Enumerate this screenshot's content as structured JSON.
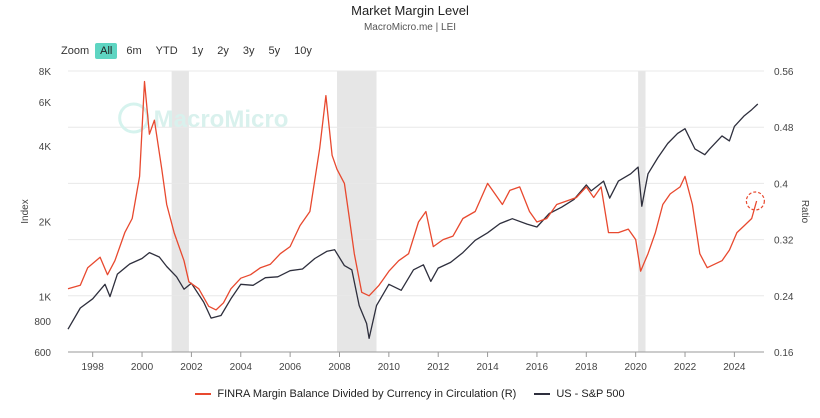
{
  "header": {
    "title": "Market Margin Level",
    "subtitle": "MacroMicro.me | LEI"
  },
  "zoom": {
    "label": "Zoom",
    "buttons": [
      "All",
      "6m",
      "YTD",
      "1y",
      "2y",
      "3y",
      "5y",
      "10y"
    ],
    "active": "All"
  },
  "watermark": "MacroMicro",
  "colors": {
    "margin": "#e8492f",
    "sp500": "#2e2f3d",
    "recession": "#e6e6e6",
    "active_zoom": "#5ed5c2"
  },
  "chart_data": {
    "type": "line",
    "title": "Market Margin Level",
    "subtitle": "MacroMicro.me | LEI",
    "x_axis": {
      "range": [
        1997.0,
        2025.2
      ],
      "ticks": [
        "1998",
        "2000",
        "2002",
        "2004",
        "2006",
        "2008",
        "2010",
        "2012",
        "2014",
        "2016",
        "2018",
        "2020",
        "2022",
        "2024"
      ]
    },
    "y_left": {
      "label": "Index",
      "scale": "log",
      "range": [
        600,
        8000
      ],
      "ticks": [
        {
          "v": 600,
          "label": "600"
        },
        {
          "v": 800,
          "label": "800"
        },
        {
          "v": 1000,
          "label": "1K"
        },
        {
          "v": 2000,
          "label": "2K"
        },
        {
          "v": 4000,
          "label": "4K"
        },
        {
          "v": 6000,
          "label": "6K"
        },
        {
          "v": 8000,
          "label": "8K"
        }
      ]
    },
    "y_right": {
      "label": "Ratio",
      "scale": "linear",
      "range": [
        0.16,
        0.56
      ],
      "ticks": [
        "0.16",
        "0.24",
        "0.32",
        "0.4",
        "0.48",
        "0.56"
      ]
    },
    "grid": "horizontal",
    "legend_position": "bottom",
    "recessions": [
      [
        2001.2,
        2001.9
      ],
      [
        2007.9,
        2009.5
      ],
      [
        2020.1,
        2020.4
      ]
    ],
    "series": [
      {
        "name": "FINRA Margin Balance Divided by Currency in Circulation (R)",
        "axis": "right",
        "points": [
          [
            1997.0,
            0.25
          ],
          [
            1997.5,
            0.255
          ],
          [
            1997.8,
            0.28
          ],
          [
            1998.3,
            0.295
          ],
          [
            1998.6,
            0.27
          ],
          [
            1998.9,
            0.29
          ],
          [
            1999.3,
            0.33
          ],
          [
            1999.6,
            0.35
          ],
          [
            1999.9,
            0.41
          ],
          [
            2000.1,
            0.545
          ],
          [
            2000.3,
            0.47
          ],
          [
            2000.5,
            0.49
          ],
          [
            2000.8,
            0.42
          ],
          [
            2001.0,
            0.37
          ],
          [
            2001.3,
            0.33
          ],
          [
            2001.7,
            0.29
          ],
          [
            2001.9,
            0.26
          ],
          [
            2002.3,
            0.25
          ],
          [
            2002.7,
            0.225
          ],
          [
            2003.0,
            0.22
          ],
          [
            2003.3,
            0.23
          ],
          [
            2003.6,
            0.25
          ],
          [
            2004.0,
            0.265
          ],
          [
            2004.4,
            0.27
          ],
          [
            2004.8,
            0.28
          ],
          [
            2005.2,
            0.285
          ],
          [
            2005.6,
            0.3
          ],
          [
            2006.0,
            0.31
          ],
          [
            2006.4,
            0.34
          ],
          [
            2006.8,
            0.36
          ],
          [
            2007.2,
            0.45
          ],
          [
            2007.45,
            0.525
          ],
          [
            2007.7,
            0.44
          ],
          [
            2007.9,
            0.42
          ],
          [
            2008.2,
            0.4
          ],
          [
            2008.4,
            0.35
          ],
          [
            2008.6,
            0.3
          ],
          [
            2008.9,
            0.245
          ],
          [
            2009.2,
            0.24
          ],
          [
            2009.6,
            0.255
          ],
          [
            2010.0,
            0.275
          ],
          [
            2010.4,
            0.29
          ],
          [
            2010.8,
            0.3
          ],
          [
            2011.2,
            0.345
          ],
          [
            2011.5,
            0.36
          ],
          [
            2011.8,
            0.31
          ],
          [
            2012.2,
            0.32
          ],
          [
            2012.6,
            0.325
          ],
          [
            2013.0,
            0.35
          ],
          [
            2013.5,
            0.36
          ],
          [
            2014.0,
            0.4
          ],
          [
            2014.3,
            0.385
          ],
          [
            2014.6,
            0.37
          ],
          [
            2014.9,
            0.39
          ],
          [
            2015.3,
            0.395
          ],
          [
            2015.7,
            0.36
          ],
          [
            2016.0,
            0.345
          ],
          [
            2016.4,
            0.35
          ],
          [
            2016.8,
            0.37
          ],
          [
            2017.2,
            0.375
          ],
          [
            2017.6,
            0.38
          ],
          [
            2018.0,
            0.395
          ],
          [
            2018.3,
            0.38
          ],
          [
            2018.6,
            0.395
          ],
          [
            2018.9,
            0.33
          ],
          [
            2019.3,
            0.33
          ],
          [
            2019.7,
            0.335
          ],
          [
            2020.0,
            0.32
          ],
          [
            2020.2,
            0.275
          ],
          [
            2020.5,
            0.3
          ],
          [
            2020.8,
            0.33
          ],
          [
            2021.1,
            0.37
          ],
          [
            2021.4,
            0.385
          ],
          [
            2021.8,
            0.395
          ],
          [
            2022.0,
            0.41
          ],
          [
            2022.3,
            0.37
          ],
          [
            2022.6,
            0.3
          ],
          [
            2022.9,
            0.28
          ],
          [
            2023.2,
            0.285
          ],
          [
            2023.5,
            0.29
          ],
          [
            2023.8,
            0.305
          ],
          [
            2024.1,
            0.33
          ],
          [
            2024.4,
            0.34
          ],
          [
            2024.7,
            0.35
          ],
          [
            2024.9,
            0.375
          ]
        ]
      },
      {
        "name": "US - S&P 500",
        "axis": "left",
        "points": [
          [
            1997.0,
            740
          ],
          [
            1997.5,
            900
          ],
          [
            1998.0,
            980
          ],
          [
            1998.5,
            1120
          ],
          [
            1998.7,
            1000
          ],
          [
            1999.0,
            1230
          ],
          [
            1999.5,
            1350
          ],
          [
            2000.0,
            1420
          ],
          [
            2000.3,
            1500
          ],
          [
            2000.7,
            1440
          ],
          [
            2001.0,
            1320
          ],
          [
            2001.4,
            1200
          ],
          [
            2001.7,
            1070
          ],
          [
            2002.0,
            1130
          ],
          [
            2002.5,
            950
          ],
          [
            2002.8,
            820
          ],
          [
            2003.2,
            840
          ],
          [
            2003.6,
            980
          ],
          [
            2004.0,
            1120
          ],
          [
            2004.5,
            1110
          ],
          [
            2005.0,
            1190
          ],
          [
            2005.5,
            1200
          ],
          [
            2006.0,
            1270
          ],
          [
            2006.5,
            1290
          ],
          [
            2007.0,
            1420
          ],
          [
            2007.5,
            1520
          ],
          [
            2007.8,
            1540
          ],
          [
            2008.2,
            1330
          ],
          [
            2008.5,
            1280
          ],
          [
            2008.8,
            920
          ],
          [
            2009.1,
            780
          ],
          [
            2009.2,
            680
          ],
          [
            2009.5,
            920
          ],
          [
            2010.0,
            1120
          ],
          [
            2010.5,
            1060
          ],
          [
            2011.0,
            1280
          ],
          [
            2011.4,
            1340
          ],
          [
            2011.7,
            1150
          ],
          [
            2012.0,
            1300
          ],
          [
            2012.5,
            1370
          ],
          [
            2013.0,
            1500
          ],
          [
            2013.5,
            1680
          ],
          [
            2014.0,
            1800
          ],
          [
            2014.5,
            1960
          ],
          [
            2015.0,
            2050
          ],
          [
            2015.6,
            1950
          ],
          [
            2016.0,
            1900
          ],
          [
            2016.5,
            2150
          ],
          [
            2017.0,
            2280
          ],
          [
            2017.5,
            2450
          ],
          [
            2018.0,
            2800
          ],
          [
            2018.2,
            2650
          ],
          [
            2018.7,
            2900
          ],
          [
            2018.95,
            2480
          ],
          [
            2019.3,
            2900
          ],
          [
            2019.8,
            3100
          ],
          [
            2020.1,
            3300
          ],
          [
            2020.25,
            2300
          ],
          [
            2020.5,
            3100
          ],
          [
            2020.9,
            3600
          ],
          [
            2021.3,
            4100
          ],
          [
            2021.7,
            4500
          ],
          [
            2022.0,
            4700
          ],
          [
            2022.4,
            3900
          ],
          [
            2022.8,
            3700
          ],
          [
            2023.0,
            3900
          ],
          [
            2023.5,
            4400
          ],
          [
            2023.8,
            4200
          ],
          [
            2024.0,
            4800
          ],
          [
            2024.4,
            5300
          ],
          [
            2024.7,
            5600
          ],
          [
            2024.95,
            5900
          ]
        ]
      }
    ],
    "annotation": {
      "x": 2024.85,
      "y": 0.375,
      "axis": "right",
      "type": "dashed-circle"
    }
  }
}
